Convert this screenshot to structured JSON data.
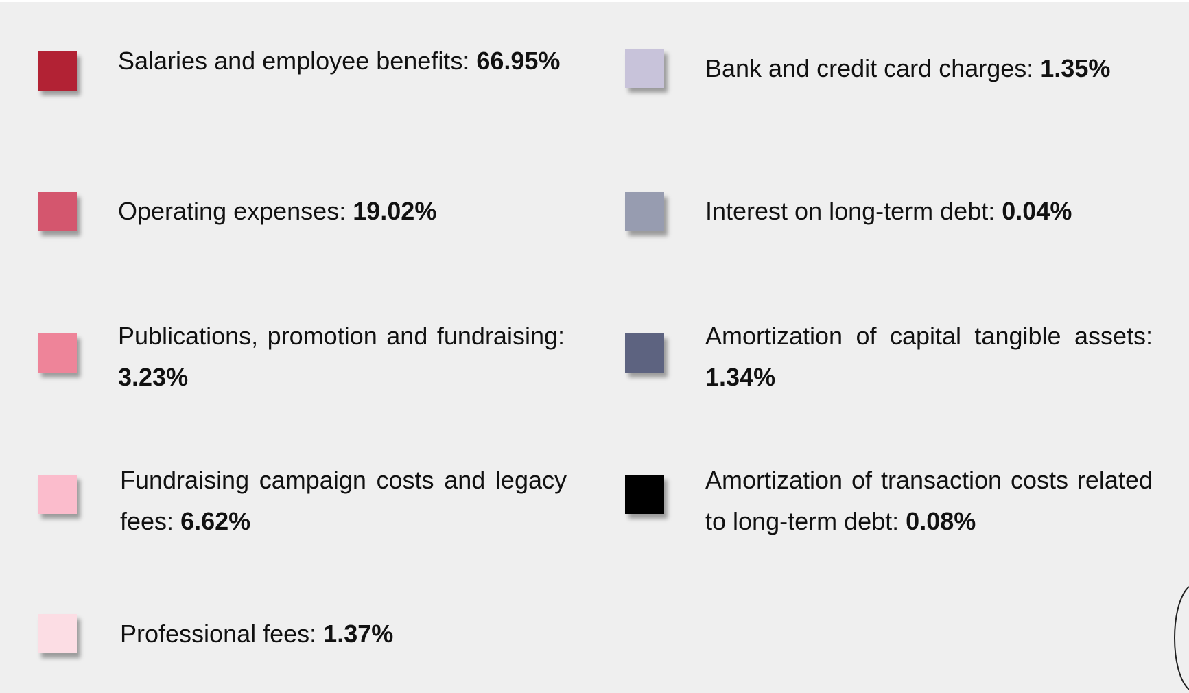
{
  "legend": {
    "items": [
      {
        "label": "Salaries and employee benefits:",
        "value": "66.95%",
        "color": "#b22234"
      },
      {
        "label": "Operating expenses:",
        "value": "19.02%",
        "color": "#d4566e"
      },
      {
        "label": "Publications, promotion and fundraising:",
        "value": "3.23%",
        "color": "#ee8499"
      },
      {
        "label": "Fundraising campaign costs and legacy fees:",
        "value": "6.62%",
        "color": "#fbbccc"
      },
      {
        "label": "Professional fees:",
        "value": "1.37%",
        "color": "#fcdde4"
      },
      {
        "label": "Bank and credit card charges:",
        "value": "1.35%",
        "color": "#c8c3da"
      },
      {
        "label": "Interest on long-term debt:",
        "value": "0.04%",
        "color": "#979cb0"
      },
      {
        "label": "Amortization of capital tangible assets:",
        "value": "1.34%",
        "color": "#5d6380"
      },
      {
        "label": "Amortization of transaction costs related to long-term debt:",
        "value": "0.08%",
        "color": "#000000"
      }
    ]
  }
}
